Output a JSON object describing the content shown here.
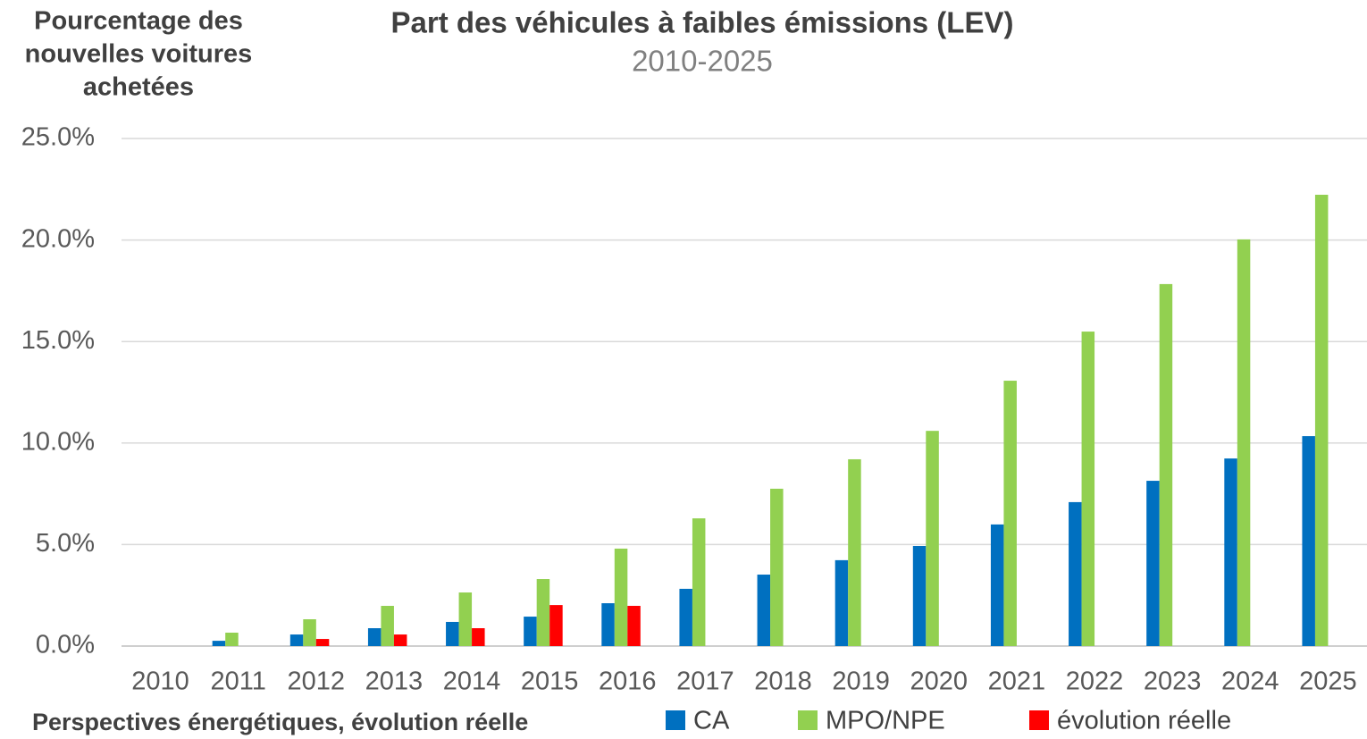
{
  "chart_data": {
    "type": "bar",
    "title": "Part des véhicules à faibles émissions (LEV)",
    "subtitle": "2010-2025",
    "y_axis_label": [
      "Pourcentage des",
      "nouvelles voitures",
      "achetées"
    ],
    "legend_title": "Perspectives énergétiques, évolution réelle",
    "categories": [
      "2010",
      "2011",
      "2012",
      "2013",
      "2014",
      "2015",
      "2016",
      "2017",
      "2018",
      "2019",
      "2020",
      "2021",
      "2022",
      "2023",
      "2024",
      "2025"
    ],
    "series": [
      {
        "name": "CA",
        "color": "#0070c0",
        "values": [
          null,
          0.26,
          0.57,
          0.88,
          1.19,
          1.45,
          2.11,
          2.82,
          3.52,
          4.23,
          4.93,
          5.99,
          7.09,
          8.14,
          9.24,
          10.34
        ]
      },
      {
        "name": "MPO/NPE",
        "color": "#92d050",
        "values": [
          null,
          0.66,
          1.32,
          1.98,
          2.64,
          3.3,
          4.8,
          6.29,
          7.75,
          9.2,
          10.6,
          13.07,
          15.49,
          17.83,
          20.03,
          22.23
        ]
      },
      {
        "name": "évolution réelle",
        "color": "#ff0000",
        "values": [
          null,
          null,
          0.35,
          0.57,
          0.88,
          2.02,
          1.98,
          null,
          null,
          null,
          null,
          null,
          null,
          null,
          null,
          null
        ]
      }
    ],
    "ylim": [
      0,
      25
    ],
    "yticks": [
      {
        "value": 0,
        "label": "0.0%"
      },
      {
        "value": 5,
        "label": "5.0%"
      },
      {
        "value": 10,
        "label": "10.0%"
      },
      {
        "value": 15,
        "label": "15.0%"
      },
      {
        "value": 20,
        "label": "20.0%"
      },
      {
        "value": 25,
        "label": "25.0%"
      }
    ],
    "grid": true
  }
}
